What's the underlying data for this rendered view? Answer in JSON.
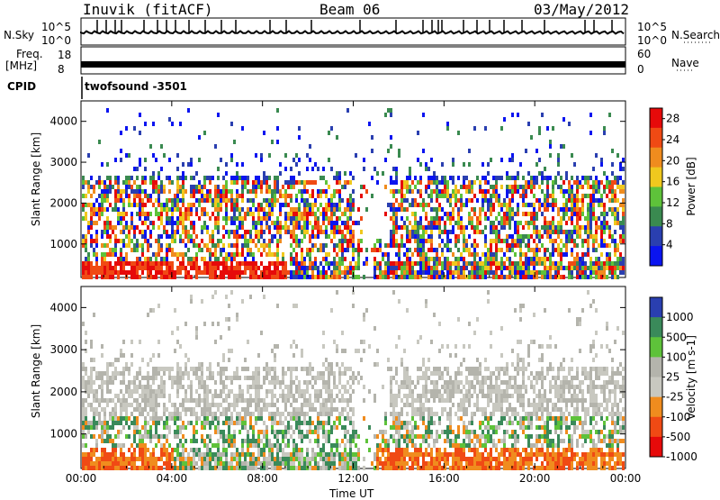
{
  "header": {
    "station": "Inuvik (fitACF)",
    "beam": "Beam 06",
    "date": "03/May/2012"
  },
  "top_panels": {
    "nsky_label": "N.Sky",
    "nsky_ticks": [
      "10^5",
      "10^0"
    ],
    "nsky_right_ticks": [
      "10^5",
      "10^0"
    ],
    "nsearch_label": "N.Search",
    "freq_label_line1": "Freq.",
    "freq_label_line2": "[MHz]",
    "freq_ticks": [
      "18",
      "8"
    ],
    "nave_ticks": [
      "60",
      "0"
    ],
    "nave_label": "Nave",
    "cpid_label": "CPID",
    "cpid_value": "twofsound -3501"
  },
  "colors": {
    "power": [
      "#0a14f0",
      "#2a3fb0",
      "#3a8a50",
      "#5ec23a",
      "#f0c81e",
      "#f08c1e",
      "#f04a14",
      "#e60a0a"
    ],
    "velocity": [
      "#e60a0a",
      "#f04a14",
      "#f08c1e",
      "#c8c8c0",
      "#b4b4ac",
      "#5ec23a",
      "#3a8a5a",
      "#2a3fb0"
    ]
  },
  "chart_data": [
    {
      "type": "heatmap",
      "title": "",
      "xlabel": "",
      "ylabel": "Slant Range [km]",
      "xlim": [
        "00:00",
        "00:00"
      ],
      "x_ticks": [
        "00:00",
        "04:00",
        "08:00",
        "12:00",
        "16:00",
        "20:00",
        "00:00"
      ],
      "ylim": [
        180,
        4500
      ],
      "y_ticks": [
        1000,
        2000,
        3000,
        4000
      ],
      "colorbar": {
        "label": "Power [dB]",
        "ticks": [
          4,
          8,
          12,
          16,
          20,
          24,
          28
        ],
        "range": [
          0,
          30
        ]
      }
    },
    {
      "type": "heatmap",
      "title": "",
      "xlabel": "Time UT",
      "ylabel": "Slant Range [km]",
      "xlim": [
        "00:00",
        "00:00"
      ],
      "x_ticks": [
        "00:00",
        "04:00",
        "08:00",
        "12:00",
        "16:00",
        "20:00",
        "00:00"
      ],
      "ylim": [
        180,
        4500
      ],
      "y_ticks": [
        1000,
        2000,
        3000,
        4000
      ],
      "colorbar": {
        "label": "Velocity [m s-1]",
        "ticks": [
          1000,
          500,
          100,
          25,
          -25,
          -100,
          -500,
          -1000
        ]
      }
    }
  ]
}
